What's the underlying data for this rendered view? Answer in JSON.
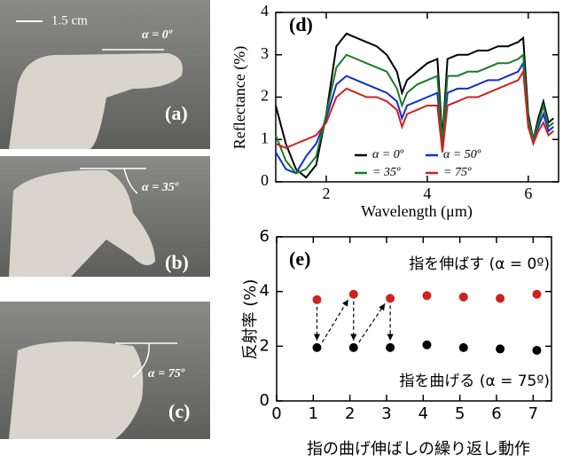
{
  "photos": [
    {
      "label": "(a)",
      "angle": "α = 0º",
      "scale": "1.5 cm"
    },
    {
      "label": "(b)",
      "angle": "α = 35º"
    },
    {
      "label": "(c)",
      "angle": "α = 75º"
    }
  ],
  "chart_data": [
    {
      "type": "line",
      "panel": "(d)",
      "xlabel": "Wavelength (μm)",
      "ylabel": "Reflectance (%)",
      "xlim": [
        1.0,
        6.6
      ],
      "ylim": [
        0,
        4
      ],
      "xticks": [
        2,
        4,
        6
      ],
      "yticks": [
        0,
        1,
        2,
        3,
        4
      ],
      "x": [
        1.0,
        1.2,
        1.4,
        1.6,
        1.8,
        2.0,
        2.2,
        2.4,
        2.6,
        2.8,
        3.0,
        3.2,
        3.4,
        3.5,
        3.6,
        3.8,
        4.0,
        4.2,
        4.3,
        4.4,
        4.6,
        4.8,
        5.0,
        5.2,
        5.4,
        5.6,
        5.8,
        5.9,
        6.0,
        6.1,
        6.2,
        6.3,
        6.4,
        6.5
      ],
      "series": [
        {
          "name": "α = 0º",
          "color": "#000000",
          "values": [
            1.8,
            0.9,
            0.3,
            0.1,
            0.4,
            1.6,
            3.2,
            3.5,
            3.4,
            3.3,
            3.2,
            3.0,
            2.6,
            2.1,
            2.4,
            2.6,
            2.8,
            2.9,
            1.0,
            2.9,
            3.0,
            3.0,
            3.1,
            3.1,
            3.2,
            3.2,
            3.3,
            3.4,
            1.6,
            1.0,
            1.5,
            1.9,
            1.4,
            1.5
          ]
        },
        {
          "name": "α = 50º",
          "color": "#1030d0",
          "values": [
            0.7,
            0.3,
            0.2,
            0.6,
            0.9,
            1.5,
            2.3,
            2.5,
            2.4,
            2.3,
            2.2,
            2.1,
            1.9,
            1.5,
            1.8,
            1.9,
            2.0,
            2.1,
            0.8,
            2.1,
            2.2,
            2.2,
            2.3,
            2.4,
            2.4,
            2.5,
            2.6,
            2.8,
            1.4,
            1.0,
            1.3,
            1.6,
            1.2,
            1.3
          ]
        },
        {
          "name": "= 35º",
          "color": "#1a7a2a",
          "values": [
            1.1,
            0.5,
            0.2,
            0.3,
            0.6,
            1.6,
            2.7,
            3.0,
            2.9,
            2.8,
            2.7,
            2.6,
            2.2,
            1.8,
            2.1,
            2.3,
            2.4,
            2.5,
            0.9,
            2.5,
            2.5,
            2.6,
            2.6,
            2.7,
            2.8,
            2.8,
            2.9,
            3.0,
            1.5,
            1.0,
            1.4,
            1.8,
            1.3,
            1.4
          ]
        },
        {
          "name": "= 75º",
          "color": "#d02020",
          "values": [
            0.9,
            0.8,
            0.9,
            1.0,
            1.1,
            1.4,
            2.0,
            2.2,
            2.1,
            2.0,
            2.0,
            1.9,
            1.7,
            1.3,
            1.6,
            1.7,
            1.8,
            1.8,
            0.7,
            1.8,
            1.9,
            2.0,
            2.0,
            2.1,
            2.2,
            2.3,
            2.4,
            2.6,
            1.3,
            0.9,
            1.2,
            1.4,
            1.1,
            1.2
          ]
        }
      ]
    },
    {
      "type": "scatter",
      "panel": "(e)",
      "xlabel": "指の曲げ伸ばしの繰り返し動作",
      "ylabel": "反射率 (%)",
      "xlim": [
        0,
        7.5
      ],
      "ylim": [
        0,
        6
      ],
      "xticks": [
        0,
        1,
        2,
        3,
        4,
        5,
        6,
        7
      ],
      "yticks": [
        0,
        2,
        4,
        6
      ],
      "annotations": [
        "指を伸ばす (α = 0º)",
        "指を曲げる (α = 75º)"
      ],
      "x": [
        1.1,
        2.1,
        3.1,
        4.1,
        5.1,
        6.1,
        7.1
      ],
      "series": [
        {
          "color": "#d02020",
          "values": [
            3.7,
            3.9,
            3.75,
            3.85,
            3.8,
            3.75,
            3.9
          ]
        },
        {
          "color": "#000000",
          "values": [
            1.95,
            1.95,
            1.95,
            2.05,
            1.95,
            1.9,
            1.85
          ]
        }
      ]
    }
  ]
}
